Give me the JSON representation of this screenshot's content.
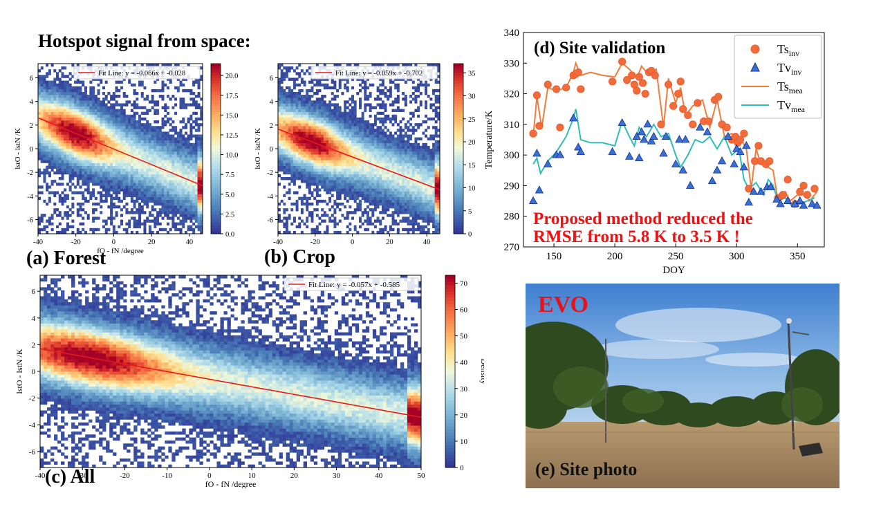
{
  "figure": {
    "main_title": "Hotspot signal from space:",
    "panel_a_tag": "(a) Forest",
    "panel_b_tag": "(b) Crop",
    "panel_c_tag": "(c) All",
    "panel_e_tag": "(e) Site photo",
    "site_name": "EVO",
    "message_line1": "Proposed method reduced the",
    "message_line2": "RMSE from 5.8 K to 3.5 K !"
  },
  "colors": {
    "ts_inv": "#f26b3a",
    "tv_inv": "#3a6fd8",
    "ts_mea": "#f07c3c",
    "tv_mea": "#2ebcb8",
    "fit_line": "#e41a1c",
    "message": "#ee1111"
  },
  "chart_data": [
    {
      "id": "a",
      "type": "heatmap",
      "title": "",
      "xlabel": "fO - fN /degree",
      "ylabel": "lstO - lstN /K",
      "xlim": [
        -40,
        47
      ],
      "ylim": [
        -7.2,
        7.2
      ],
      "xticks": [
        -40,
        -20,
        0,
        20,
        40
      ],
      "yticks": [
        -6,
        -4,
        -2,
        0,
        2,
        4,
        6
      ],
      "fit": {
        "slope": -0.066,
        "intercept": -0.028,
        "label": "Fit Line: y = -0.066x + -0.028"
      },
      "colorbar": {
        "min": 0,
        "max": 21.5,
        "ticks": [
          0.0,
          2.5,
          5.0,
          7.5,
          10.0,
          12.5,
          15.0,
          17.5,
          20.0
        ],
        "label": ""
      },
      "hot_center": -20,
      "spread": 2.1,
      "seed": 11
    },
    {
      "id": "b",
      "type": "heatmap",
      "title": "",
      "xlabel": "",
      "ylabel": "lstO - lstN /K",
      "xlim": [
        -40,
        47
      ],
      "ylim": [
        -7.2,
        7.2
      ],
      "xticks": [
        -40,
        -20,
        0,
        20,
        40
      ],
      "yticks": [
        -6,
        -4,
        -2,
        0,
        2,
        4,
        6
      ],
      "fit": {
        "slope": -0.059,
        "intercept": -0.702,
        "label": "Fit Line: y = -0.059x + -0.702"
      },
      "colorbar": {
        "min": 0,
        "max": 37,
        "ticks": [
          0,
          5,
          10,
          15,
          20,
          25,
          30,
          35
        ],
        "label": ""
      },
      "hot_center": -22,
      "spread": 2.0,
      "seed": 23
    },
    {
      "id": "c",
      "type": "heatmap",
      "title": "",
      "xlabel": "fO - fN /degree",
      "ylabel": "lstO - lstN /K",
      "xlim": [
        -40,
        50
      ],
      "ylim": [
        -7.2,
        7.2
      ],
      "xticks": [
        -40,
        -30,
        -20,
        -10,
        0,
        10,
        20,
        30,
        40,
        50
      ],
      "yticks": [
        -6,
        -4,
        -2,
        0,
        2,
        4,
        6
      ],
      "fit": {
        "slope": -0.057,
        "intercept": -0.585,
        "label": "Fit Line: y = -0.057x + -0.585"
      },
      "colorbar": {
        "min": 0,
        "max": 73,
        "ticks": [
          0,
          10,
          20,
          30,
          40,
          50,
          60,
          70
        ],
        "label": "Density"
      },
      "hot_center": -28,
      "spread": 2.2,
      "seed": 37
    },
    {
      "id": "d",
      "type": "line",
      "title": "(d) Site validation",
      "xlabel": "DOY",
      "ylabel": "Temperature/K",
      "xlim": [
        125,
        372
      ],
      "ylim": [
        270,
        340
      ],
      "xticks": [
        150,
        200,
        250,
        300,
        350
      ],
      "yticks": [
        270,
        280,
        290,
        300,
        310,
        320,
        330,
        340
      ],
      "legend_position": "top-right",
      "legend": [
        {
          "name": "Ts",
          "sub": "inv",
          "marker": "circle"
        },
        {
          "name": "Tv",
          "sub": "inv",
          "marker": "triangle"
        },
        {
          "name": "Ts",
          "sub": "mea",
          "marker": "line"
        },
        {
          "name": "Tv",
          "sub": "mea",
          "marker": "line"
        }
      ],
      "ts_inv": [
        [
          133,
          307
        ],
        [
          136,
          319.5
        ],
        [
          138,
          309.5
        ],
        [
          145,
          323
        ],
        [
          152,
          321.5
        ],
        [
          155,
          309
        ],
        [
          160,
          322
        ],
        [
          166,
          326
        ],
        [
          168,
          326.5
        ],
        [
          170,
          327
        ],
        [
          172,
          321.5
        ],
        [
          198,
          324
        ],
        [
          206,
          330.5
        ],
        [
          210,
          324.5
        ],
        [
          214,
          326
        ],
        [
          216,
          323
        ],
        [
          218,
          321
        ],
        [
          220,
          325.5
        ],
        [
          223,
          323.5
        ],
        [
          225,
          320
        ],
        [
          228,
          327
        ],
        [
          230,
          327.5
        ],
        [
          233,
          326
        ],
        [
          238,
          310
        ],
        [
          244,
          323
        ],
        [
          248,
          316
        ],
        [
          252,
          320
        ],
        [
          254,
          324
        ],
        [
          256,
          315
        ],
        [
          260,
          313
        ],
        [
          264,
          310
        ],
        [
          268,
          317
        ],
        [
          273,
          311
        ],
        [
          277,
          311
        ],
        [
          282,
          318
        ],
        [
          285,
          319
        ],
        [
          288,
          310
        ],
        [
          292,
          309
        ],
        [
          296,
          305
        ],
        [
          299,
          306
        ],
        [
          301,
          304
        ],
        [
          303,
          305
        ],
        [
          306,
          307
        ],
        [
          310,
          289
        ],
        [
          315,
          298
        ],
        [
          318,
          303
        ],
        [
          320,
          298
        ],
        [
          324,
          297
        ],
        [
          327,
          298
        ],
        [
          334,
          286
        ],
        [
          338,
          287
        ],
        [
          342,
          292
        ],
        [
          348,
          284
        ],
        [
          352,
          288
        ],
        [
          355,
          290
        ],
        [
          358,
          287
        ],
        [
          364,
          289
        ]
      ],
      "tv_inv": [
        [
          133,
          285
        ],
        [
          136,
          300.5
        ],
        [
          138,
          288.5
        ],
        [
          145,
          297
        ],
        [
          152,
          300
        ],
        [
          155,
          300
        ],
        [
          166,
          312
        ],
        [
          170,
          302.5
        ],
        [
          172,
          301
        ],
        [
          198,
          301
        ],
        [
          206,
          310.5
        ],
        [
          212,
          299.5
        ],
        [
          218,
          306
        ],
        [
          220,
          299
        ],
        [
          222,
          307.5
        ],
        [
          224,
          305
        ],
        [
          227,
          310
        ],
        [
          230,
          304.5
        ],
        [
          232,
          306
        ],
        [
          240,
          300.5
        ],
        [
          242,
          306
        ],
        [
          250,
          297
        ],
        [
          253,
          305
        ],
        [
          256,
          295
        ],
        [
          258,
          305
        ],
        [
          262,
          290
        ],
        [
          270,
          309
        ],
        [
          276,
          307.5
        ],
        [
          280,
          291.5
        ],
        [
          284,
          295
        ],
        [
          288,
          298
        ],
        [
          293,
          306
        ],
        [
          298,
          297
        ],
        [
          300,
          302
        ],
        [
          303,
          301
        ],
        [
          306,
          296
        ],
        [
          308,
          303
        ],
        [
          310,
          284.5
        ],
        [
          314,
          288
        ],
        [
          320,
          288
        ],
        [
          325,
          289.5
        ],
        [
          328,
          289.5
        ],
        [
          333,
          285.5
        ],
        [
          336,
          284
        ],
        [
          342,
          285
        ],
        [
          348,
          284
        ],
        [
          352,
          285
        ],
        [
          355,
          283.5
        ],
        [
          362,
          284
        ],
        [
          366,
          283.5
        ]
      ],
      "ts_mea": [
        [
          133,
          306
        ],
        [
          136,
          319
        ],
        [
          140,
          309
        ],
        [
          145,
          322
        ],
        [
          152,
          321
        ],
        [
          160,
          322
        ],
        [
          166,
          327
        ],
        [
          168,
          330
        ],
        [
          172,
          326
        ],
        [
          180,
          327
        ],
        [
          190,
          326
        ],
        [
          200,
          325.5
        ],
        [
          206,
          330
        ],
        [
          212,
          328
        ],
        [
          218,
          325
        ],
        [
          222,
          329
        ],
        [
          228,
          326
        ],
        [
          234,
          328
        ],
        [
          240,
          309
        ],
        [
          244,
          325
        ],
        [
          250,
          317
        ],
        [
          254,
          322
        ],
        [
          258,
          313
        ],
        [
          264,
          316
        ],
        [
          272,
          318
        ],
        [
          278,
          309
        ],
        [
          284,
          318
        ],
        [
          290,
          306
        ],
        [
          296,
          307
        ],
        [
          300,
          305
        ],
        [
          304,
          305
        ],
        [
          308,
          302
        ],
        [
          312,
          289
        ],
        [
          316,
          302
        ],
        [
          320,
          297
        ],
        [
          326,
          296
        ],
        [
          330,
          295
        ],
        [
          334,
          285
        ],
        [
          340,
          288
        ],
        [
          344,
          285
        ],
        [
          350,
          287
        ],
        [
          356,
          287
        ],
        [
          360,
          285
        ],
        [
          366,
          288
        ]
      ],
      "tv_mea": [
        [
          133,
          297
        ],
        [
          136,
          299
        ],
        [
          139,
          294
        ],
        [
          145,
          298
        ],
        [
          152,
          301
        ],
        [
          160,
          306
        ],
        [
          166,
          312
        ],
        [
          168,
          315
        ],
        [
          172,
          305
        ],
        [
          180,
          304
        ],
        [
          190,
          304
        ],
        [
          200,
          303
        ],
        [
          206,
          311
        ],
        [
          212,
          306
        ],
        [
          216,
          303
        ],
        [
          220,
          309
        ],
        [
          226,
          306
        ],
        [
          232,
          310
        ],
        [
          238,
          306
        ],
        [
          244,
          307
        ],
        [
          250,
          300
        ],
        [
          254,
          296
        ],
        [
          260,
          300
        ],
        [
          266,
          305
        ],
        [
          272,
          304
        ],
        [
          278,
          306
        ],
        [
          284,
          302
        ],
        [
          290,
          306
        ],
        [
          296,
          300
        ],
        [
          302,
          302
        ],
        [
          306,
          292
        ],
        [
          310,
          289
        ],
        [
          316,
          291
        ],
        [
          322,
          287
        ],
        [
          326,
          292
        ],
        [
          330,
          290
        ],
        [
          334,
          285
        ],
        [
          340,
          286
        ],
        [
          346,
          283
        ],
        [
          352,
          284
        ],
        [
          358,
          285
        ],
        [
          364,
          286
        ]
      ]
    }
  ]
}
